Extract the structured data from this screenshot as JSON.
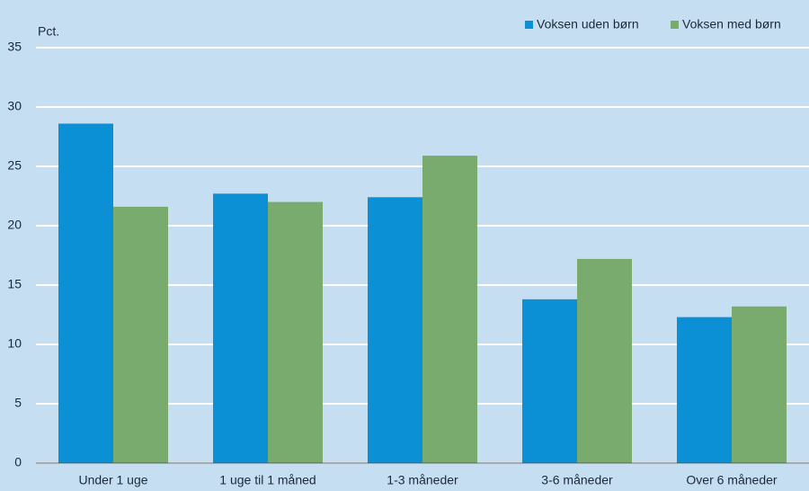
{
  "chart_data": {
    "type": "bar",
    "y_label": "Pct.",
    "categories": [
      "Under 1 uge",
      "1 uge til 1 måned",
      "1-3 måneder",
      "3-6 måneder",
      "Over 6 måneder"
    ],
    "series": [
      {
        "name": "Voksen uden børn",
        "color": "#0b8fd5",
        "values": [
          28.6,
          22.7,
          22.4,
          13.8,
          12.3
        ]
      },
      {
        "name": "Voksen med børn",
        "color": "#79aa6e",
        "values": [
          21.6,
          22.0,
          25.9,
          17.2,
          13.2
        ]
      }
    ],
    "ylim": [
      0,
      35
    ],
    "yticks": [
      0,
      5,
      10,
      15,
      20,
      25,
      30,
      35
    ],
    "grid": true,
    "legend": "top-right"
  }
}
